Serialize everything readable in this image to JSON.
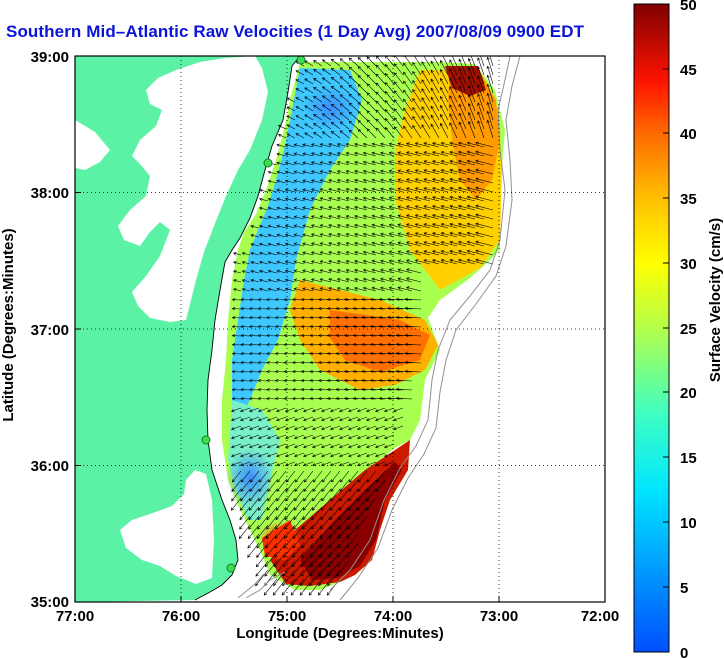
{
  "title": "Southern Mid–Atlantic Raw Velocities (1 Day Avg) 2007/08/09 0900 EDT",
  "map": {
    "xlabel": "Longitude (Degrees:Minutes)",
    "ylabel": "Latitude (Degrees:Minutes)",
    "x_ticks": [
      "77:00",
      "76:00",
      "75:00",
      "74:00",
      "73:00",
      "72:00"
    ],
    "y_ticks": [
      "39:00",
      "38:00",
      "37:00",
      "36:00",
      "35:00"
    ],
    "x_range_deg_west": [
      77,
      72
    ],
    "y_range_deg_north": [
      35,
      39
    ],
    "grid": "dotted",
    "land_color": "#5cf2a6",
    "bay_color": "#ffffff"
  },
  "colorbar": {
    "label": "Surface Velocity (cm/s)",
    "ticks": [
      "0",
      "5",
      "10",
      "15",
      "20",
      "25",
      "30",
      "35",
      "40",
      "45",
      "50"
    ],
    "range": [
      0,
      50
    ],
    "colormap": "jet"
  },
  "radar_sites": [
    {
      "lat": 38.98,
      "lon": -74.89
    },
    {
      "lat": 38.21,
      "lon": -75.11
    },
    {
      "lat": 36.18,
      "lon": -75.75
    },
    {
      "lat": 35.26,
      "lon": -75.53
    }
  ]
}
